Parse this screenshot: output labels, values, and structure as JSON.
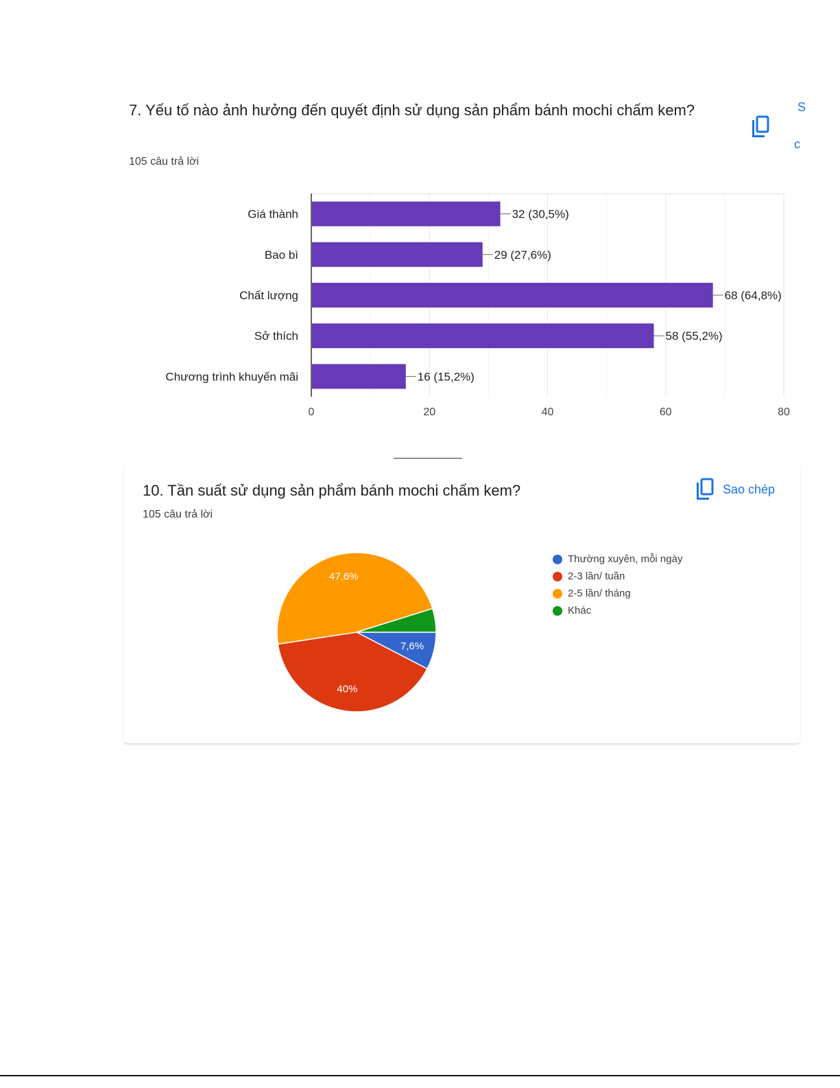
{
  "q7": {
    "title": "7. Yếu tố nào ảnh hưởng đến quyết định sử dụng sản phẩm bánh mochi chấm kem?",
    "responses": "105 câu trả lời",
    "cut_text_top": "S",
    "cut_text_bottom": "c"
  },
  "q10": {
    "title": "10. Tần suất sử dụng sản phẩm bánh mochi chấm kem?",
    "responses": "105 câu trả lời",
    "copy_label": "Sao chép"
  },
  "chart_data": [
    {
      "type": "bar",
      "orientation": "horizontal",
      "categories": [
        "Giá thành",
        "Bao bì",
        "Chất lượng",
        "Sở thích",
        "Chương trình khuyến mãi"
      ],
      "values": [
        32,
        29,
        68,
        58,
        16
      ],
      "data_labels": [
        "32 (30,5%)",
        "29 (27,6%)",
        "68 (64,8%)",
        "58 (55,2%)",
        "16 (15,2%)"
      ],
      "xlim": [
        0,
        80
      ],
      "xticks": [
        0,
        20,
        40,
        60,
        80
      ],
      "grid": true,
      "color": "#673ab7"
    },
    {
      "type": "pie",
      "labels": [
        "Thường xuyên, mỗi ngày",
        "2-3 lần/ tuần",
        "2-5 lần/ tháng",
        "Khác"
      ],
      "values": [
        7.6,
        40,
        47.6,
        4.8
      ],
      "slice_labels": [
        "7,6%",
        "40%",
        "47,6%",
        ""
      ],
      "colors": [
        "#3366cc",
        "#dc3912",
        "#ff9900",
        "#109618"
      ],
      "legend": "right"
    }
  ]
}
